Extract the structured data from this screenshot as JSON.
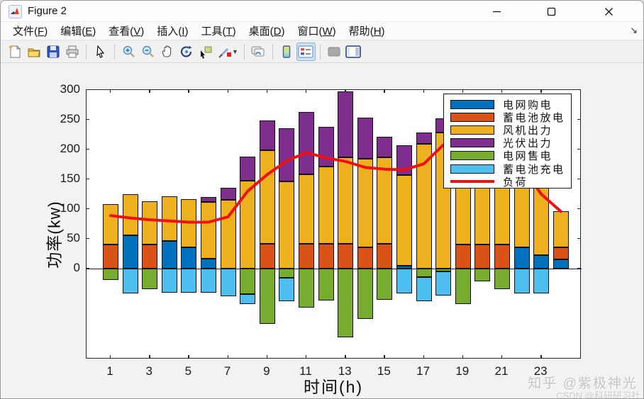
{
  "window": {
    "title": "Figure 2",
    "controls": [
      "minimize-button",
      "maximize-button",
      "close-button"
    ]
  },
  "menu": {
    "items": [
      {
        "label": "文件",
        "key": "F"
      },
      {
        "label": "编辑",
        "key": "E"
      },
      {
        "label": "查看",
        "key": "V"
      },
      {
        "label": "插入",
        "key": "I"
      },
      {
        "label": "工具",
        "key": "T"
      },
      {
        "label": "桌面",
        "key": "D"
      },
      {
        "label": "窗口",
        "key": "W"
      },
      {
        "label": "帮助",
        "key": "H"
      }
    ],
    "dock_icon": "↘"
  },
  "toolbar": {
    "buttons": [
      "new-figure",
      "open-file",
      "save-figure",
      "print-figure",
      "edit-cursor",
      "zoom-in",
      "zoom-out",
      "pan-hand",
      "rotate-3d",
      "data-cursor",
      "brush-data",
      "link-plot",
      "insert-colorbar",
      "insert-legend",
      "hide-plot-tools",
      "show-plot-tools"
    ],
    "pressed": "insert-legend"
  },
  "watermark": {
    "line1": "知乎 @紫极神光",
    "line2": "CSDN @科研研习社"
  },
  "chart_data": {
    "type": "bar",
    "subtype": "stacked-bar-with-line",
    "title": "",
    "xlabel": "时间(h)",
    "ylabel": "功率(kw)",
    "ylim": [
      -152,
      300
    ],
    "yticks": [
      0,
      50,
      100,
      150,
      200,
      250,
      300
    ],
    "xticks": [
      1,
      3,
      5,
      7,
      9,
      11,
      13,
      15,
      17,
      19,
      21,
      23
    ],
    "categories": [
      1,
      2,
      3,
      4,
      5,
      6,
      7,
      8,
      9,
      10,
      11,
      12,
      13,
      14,
      15,
      16,
      17,
      18,
      19,
      20,
      21,
      22,
      23,
      24
    ],
    "grid": false,
    "legend_position": "upper-right-inside",
    "bar_edge_color": "#101010",
    "series": [
      {
        "name": "电网购电",
        "color": "#0072BD",
        "values": [
          0,
          56,
          0,
          46,
          36,
          17,
          0,
          0,
          0,
          0,
          0,
          0,
          0,
          0,
          0,
          5,
          0,
          0,
          0,
          0,
          0,
          36,
          23,
          16
        ]
      },
      {
        "name": "蓄电池放电",
        "color": "#D95319",
        "values": [
          40,
          0,
          40,
          0,
          0,
          0,
          0,
          0,
          42,
          0,
          42,
          42,
          42,
          36,
          42,
          0,
          0,
          0,
          40,
          40,
          40,
          0,
          0,
          20
        ]
      },
      {
        "name": "风机出力",
        "color": "#EDB120",
        "values": [
          68,
          69,
          73,
          76,
          81,
          95,
          116,
          148,
          157,
          146,
          116,
          129,
          145,
          148,
          145,
          152,
          210,
          229,
          175,
          178,
          170,
          132,
          117,
          60
        ]
      },
      {
        "name": "光伏出力",
        "color": "#7E2F8E",
        "values": [
          0,
          0,
          0,
          0,
          0,
          8,
          20,
          40,
          50,
          90,
          105,
          67,
          111,
          69,
          34,
          50,
          18,
          23,
          0,
          0,
          0,
          0,
          0,
          0
        ]
      },
      {
        "name": "电网售电",
        "color": "#77AC30",
        "values": [
          -19,
          0,
          -34,
          0,
          0,
          0,
          0,
          -43,
          -93,
          -16,
          -66,
          -53,
          -116,
          -84,
          -52,
          0,
          -14,
          -5,
          -60,
          -22,
          -34,
          0,
          0,
          0
        ]
      },
      {
        "name": "蓄电池充电",
        "color": "#4DBEEE",
        "values": [
          0,
          -42,
          0,
          -41,
          -41,
          -41,
          -47,
          -17,
          0,
          -39,
          0,
          0,
          0,
          0,
          0,
          -42,
          -41,
          -40,
          0,
          0,
          0,
          -42,
          -42,
          0
        ]
      }
    ],
    "line": {
      "name": "负荷",
      "color": "#ee1111",
      "width": 4,
      "values": [
        89,
        85,
        82,
        80,
        78,
        78,
        87,
        130,
        158,
        181,
        195,
        186,
        180,
        170,
        167,
        166,
        176,
        208,
        228,
        232,
        215,
        172,
        125,
        96
      ]
    }
  }
}
